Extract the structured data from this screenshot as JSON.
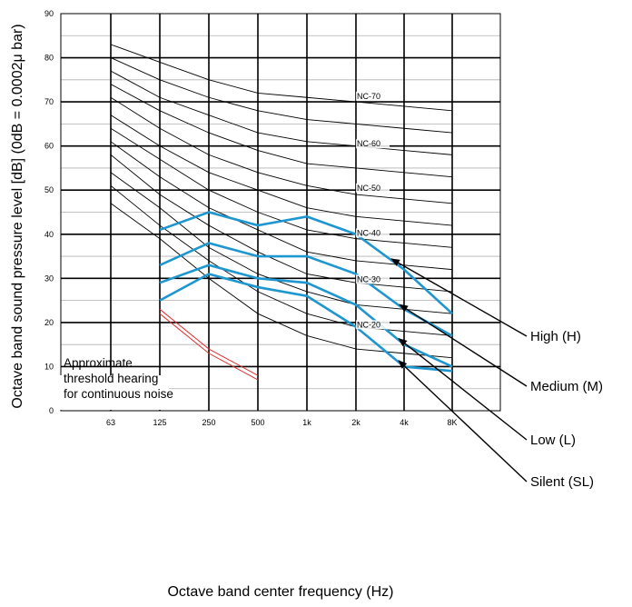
{
  "chart_data": {
    "type": "line",
    "xlabel": "Octave band center frequency (Hz)",
    "ylabel": "Octave band sound pressure level [dB] (0dB = 0.0002μ bar)",
    "x_ticks": [
      "63",
      "125",
      "250",
      "500",
      "1k",
      "2k",
      "4k",
      "8K"
    ],
    "ylim": [
      0,
      90
    ],
    "y_ticks": [
      "0",
      "10",
      "20",
      "30",
      "40",
      "50",
      "60",
      "70",
      "80",
      "90"
    ],
    "grid": true,
    "nc_curves": [
      {
        "values": [
          83,
          79,
          75,
          72,
          71,
          70,
          69,
          68
        ]
      },
      {
        "values": [
          80,
          75,
          71,
          68,
          66,
          65,
          64,
          63
        ]
      },
      {
        "values": [
          77,
          71,
          67,
          63,
          61,
          60,
          59,
          58
        ]
      },
      {
        "values": [
          74,
          68,
          63,
          59,
          56,
          55,
          54,
          53
        ]
      },
      {
        "values": [
          71,
          64,
          58,
          54,
          51,
          49,
          48,
          47
        ]
      },
      {
        "values": [
          67,
          60,
          54,
          50,
          46,
          44,
          43,
          42
        ]
      },
      {
        "values": [
          64,
          57,
          50,
          45,
          41,
          39,
          38,
          37
        ]
      },
      {
        "values": [
          61,
          53,
          46,
          41,
          36,
          34,
          33,
          32
        ]
      },
      {
        "values": [
          58,
          49,
          42,
          36,
          31,
          29,
          28,
          27
        ]
      },
      {
        "values": [
          54,
          46,
          37,
          31,
          27,
          24,
          23,
          22
        ]
      },
      {
        "values": [
          51,
          42,
          34,
          27,
          22,
          19,
          18,
          17
        ]
      },
      {
        "values": [
          47,
          39,
          30,
          22,
          17,
          14,
          13,
          12
        ]
      }
    ],
    "nc_labels": [
      {
        "label": "NC-70",
        "x": "2k",
        "y": 71.3
      },
      {
        "label": "NC-60",
        "x": "2k",
        "y": 60.5
      },
      {
        "label": "NC-50",
        "x": "2k",
        "y": 50.5
      },
      {
        "label": "NC-40",
        "x": "2k",
        "y": 40.3
      },
      {
        "label": "NC-30",
        "x": "2k",
        "y": 29.8
      },
      {
        "label": "NC-20",
        "x": "2k",
        "y": 19.5
      }
    ],
    "series": [
      {
        "name": "High (H)",
        "x": [
          "125",
          "250",
          "500",
          "1k",
          "2k",
          "4k",
          "8K"
        ],
        "values": [
          41,
          45,
          42,
          44,
          40,
          32,
          22
        ]
      },
      {
        "name": "Medium (M)",
        "x": [
          "125",
          "250",
          "500",
          "1k",
          "2k",
          "4k",
          "8K"
        ],
        "values": [
          33,
          38,
          35,
          35,
          31,
          23,
          17
        ]
      },
      {
        "name": "Low (L)",
        "x": [
          "125",
          "250",
          "500",
          "1k",
          "2k",
          "4k",
          "8K"
        ],
        "values": [
          29,
          33,
          30,
          29,
          24,
          15,
          10
        ]
      },
      {
        "name": "Silent (SL)",
        "x": [
          "125",
          "250",
          "500",
          "1k",
          "2k",
          "4k",
          "8K"
        ],
        "values": [
          25,
          31,
          28,
          26,
          19,
          10,
          9
        ]
      }
    ],
    "series_color": "#1e96cf",
    "callouts": [
      {
        "series": "High (H)",
        "label": "High (H)"
      },
      {
        "series": "Medium (M)",
        "label": "Medium (M)"
      },
      {
        "series": "Low (L)",
        "label": "Low (L)"
      },
      {
        "series": "Silent (SL)",
        "label": "Silent (SL)"
      }
    ],
    "threshold_curve": {
      "color": "#e03030",
      "x": [
        "125",
        "250",
        "500"
      ],
      "upper": [
        23,
        14,
        8
      ],
      "lower": [
        22,
        13,
        7
      ]
    },
    "note_lines": [
      "Approximate",
      "threshold hearing",
      "for continuous noise"
    ]
  }
}
